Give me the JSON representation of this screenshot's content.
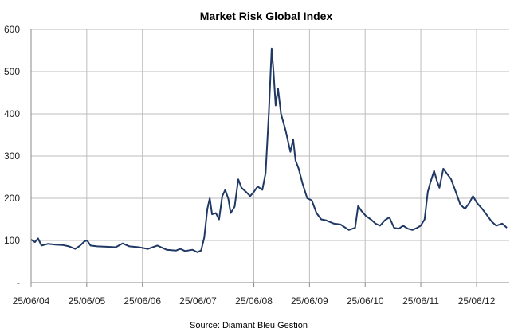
{
  "chart_data": {
    "type": "line",
    "title": "Market Risk Global Index",
    "source": "Source: Diamant Bleu Gestion",
    "xlabel": "",
    "ylabel": "",
    "ylim": [
      0,
      600
    ],
    "y_ticks": [
      "-",
      "100",
      "200",
      "300",
      "400",
      "500",
      "600"
    ],
    "x_ticks": [
      "25/06/04",
      "25/06/05",
      "25/06/06",
      "25/06/07",
      "25/06/08",
      "25/06/09",
      "25/06/10",
      "25/06/11",
      "25/06/12"
    ],
    "xlim": [
      "2004-06-25",
      "2013-01-25"
    ],
    "grid": "vertical-and-horizontal",
    "line_color": "#1f3864",
    "series": [
      {
        "values": [
          [
            "2004-06-25",
            102
          ],
          [
            "2004-07-20",
            96
          ],
          [
            "2004-08-10",
            105
          ],
          [
            "2004-09-01",
            88
          ],
          [
            "2004-10-15",
            92
          ],
          [
            "2004-12-01",
            90
          ],
          [
            "2005-01-20",
            89
          ],
          [
            "2005-03-01",
            86
          ],
          [
            "2005-04-10",
            80
          ],
          [
            "2005-05-10",
            87
          ],
          [
            "2005-06-10",
            98
          ],
          [
            "2005-06-28",
            100
          ],
          [
            "2005-07-20",
            88
          ],
          [
            "2005-09-01",
            86
          ],
          [
            "2005-11-01",
            85
          ],
          [
            "2006-01-01",
            84
          ],
          [
            "2006-02-15",
            93
          ],
          [
            "2006-04-01",
            86
          ],
          [
            "2006-06-01",
            84
          ],
          [
            "2006-08-01",
            80
          ],
          [
            "2006-10-01",
            88
          ],
          [
            "2006-12-01",
            78
          ],
          [
            "2007-02-01",
            76
          ],
          [
            "2007-03-01",
            80
          ],
          [
            "2007-04-01",
            75
          ],
          [
            "2007-05-20",
            78
          ],
          [
            "2007-06-20",
            72
          ],
          [
            "2007-07-15",
            76
          ],
          [
            "2007-08-05",
            107
          ],
          [
            "2007-08-25",
            175
          ],
          [
            "2007-09-10",
            200
          ],
          [
            "2007-09-25",
            162
          ],
          [
            "2007-10-20",
            165
          ],
          [
            "2007-11-10",
            150
          ],
          [
            "2007-12-01",
            205
          ],
          [
            "2007-12-20",
            220
          ],
          [
            "2008-01-10",
            198
          ],
          [
            "2008-01-25",
            165
          ],
          [
            "2008-02-20",
            180
          ],
          [
            "2008-03-15",
            245
          ],
          [
            "2008-04-05",
            225
          ],
          [
            "2008-05-05",
            215
          ],
          [
            "2008-06-01",
            205
          ],
          [
            "2008-06-25",
            215
          ],
          [
            "2008-07-20",
            228
          ],
          [
            "2008-08-20",
            220
          ],
          [
            "2008-09-10",
            260
          ],
          [
            "2008-10-01",
            400
          ],
          [
            "2008-10-20",
            555
          ],
          [
            "2008-11-01",
            500
          ],
          [
            "2008-11-15",
            420
          ],
          [
            "2008-12-01",
            460
          ],
          [
            "2008-12-20",
            400
          ],
          [
            "2009-01-20",
            360
          ],
          [
            "2009-02-20",
            310
          ],
          [
            "2009-03-10",
            340
          ],
          [
            "2009-03-25",
            290
          ],
          [
            "2009-04-15",
            270
          ],
          [
            "2009-05-10",
            235
          ],
          [
            "2009-06-10",
            200
          ],
          [
            "2009-07-10",
            195
          ],
          [
            "2009-08-10",
            165
          ],
          [
            "2009-09-10",
            150
          ],
          [
            "2009-10-10",
            148
          ],
          [
            "2009-12-01",
            140
          ],
          [
            "2010-01-15",
            138
          ],
          [
            "2010-03-10",
            125
          ],
          [
            "2010-04-20",
            130
          ],
          [
            "2010-05-10",
            182
          ],
          [
            "2010-06-01",
            170
          ],
          [
            "2010-07-01",
            158
          ],
          [
            "2010-08-01",
            150
          ],
          [
            "2010-09-01",
            140
          ],
          [
            "2010-10-01",
            135
          ],
          [
            "2010-11-01",
            148
          ],
          [
            "2010-12-01",
            155
          ],
          [
            "2011-01-01",
            130
          ],
          [
            "2011-02-01",
            128
          ],
          [
            "2011-03-01",
            135
          ],
          [
            "2011-04-01",
            128
          ],
          [
            "2011-05-01",
            125
          ],
          [
            "2011-06-01",
            130
          ],
          [
            "2011-06-25",
            135
          ],
          [
            "2011-07-20",
            150
          ],
          [
            "2011-08-10",
            215
          ],
          [
            "2011-08-25",
            235
          ],
          [
            "2011-09-20",
            265
          ],
          [
            "2011-10-10",
            240
          ],
          [
            "2011-10-25",
            225
          ],
          [
            "2011-11-20",
            270
          ],
          [
            "2011-12-10",
            260
          ],
          [
            "2012-01-10",
            245
          ],
          [
            "2012-02-10",
            215
          ],
          [
            "2012-03-10",
            185
          ],
          [
            "2012-04-10",
            175
          ],
          [
            "2012-05-10",
            190
          ],
          [
            "2012-06-01",
            205
          ],
          [
            "2012-06-25",
            190
          ],
          [
            "2012-08-01",
            175
          ],
          [
            "2012-09-01",
            160
          ],
          [
            "2012-10-01",
            145
          ],
          [
            "2012-11-01",
            135
          ],
          [
            "2012-12-10",
            140
          ],
          [
            "2013-01-10",
            130
          ]
        ]
      }
    ]
  }
}
